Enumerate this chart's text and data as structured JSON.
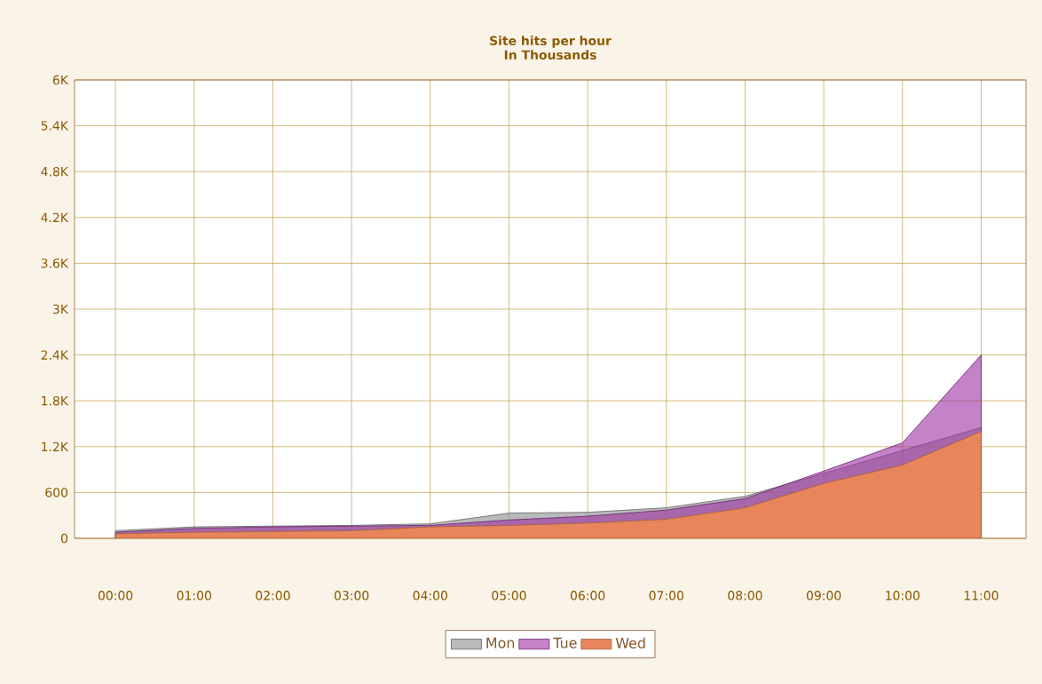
{
  "chart_data": {
    "type": "area",
    "title": "Site hits per hour",
    "subtitle": "In Thousands",
    "categories": [
      "00:00",
      "01:00",
      "02:00",
      "03:00",
      "04:00",
      "05:00",
      "06:00",
      "07:00",
      "08:00",
      "09:00",
      "10:00",
      "11:00"
    ],
    "series": [
      {
        "name": "Mon",
        "color": "#8c8c8c",
        "values": [
          100,
          150,
          160,
          170,
          190,
          330,
          340,
          400,
          550,
          850,
          1150,
          1450
        ]
      },
      {
        "name": "Tue",
        "color": "#9b30a0",
        "values": [
          80,
          130,
          150,
          160,
          170,
          240,
          290,
          370,
          520,
          880,
          1250,
          2400
        ]
      },
      {
        "name": "Wed",
        "color": "#e8855a",
        "values": [
          60,
          80,
          90,
          100,
          150,
          170,
          200,
          250,
          400,
          720,
          960,
          1400
        ]
      }
    ],
    "ylim": [
      0,
      6000
    ],
    "yticks": [
      0,
      600,
      {
        "value": 1200,
        "label": "1.2K"
      },
      {
        "value": 1800,
        "label": "1.8K"
      },
      {
        "value": 2400,
        "label": "2.4K"
      },
      {
        "value": 3000,
        "label": "3K"
      },
      {
        "value": 3600,
        "label": "3.6K"
      },
      {
        "value": 4200,
        "label": "4.2K"
      },
      {
        "value": 4800,
        "label": "4.8K"
      },
      {
        "value": 5400,
        "label": "5.4K"
      },
      {
        "value": 6000,
        "label": "6K"
      }
    ],
    "grid": true,
    "legend": "bottom"
  }
}
